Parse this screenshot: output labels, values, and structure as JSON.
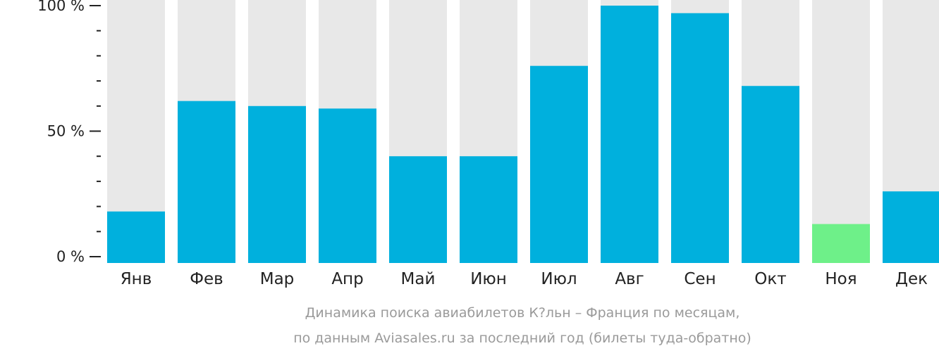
{
  "chart_data": {
    "type": "bar",
    "categories": [
      "Янв",
      "Фев",
      "Мар",
      "Апр",
      "Май",
      "Июн",
      "Июл",
      "Авг",
      "Сен",
      "Окт",
      "Ноя",
      "Дек"
    ],
    "values": [
      18,
      62,
      60,
      59,
      40,
      40,
      76,
      100,
      97,
      68,
      13,
      26
    ],
    "ylim": [
      0,
      100
    ],
    "yticks": [
      {
        "value": 100,
        "label": "100 %"
      },
      {
        "value": 50,
        "label": "50 %"
      },
      {
        "value": 0,
        "label": "0 %"
      }
    ],
    "minor_tick_step": 10,
    "highlight_index": 10,
    "colors": {
      "bar": "#00b0dd",
      "highlight": "#6ef089",
      "background_bar": "#e8e8e8",
      "axis": "#222222"
    },
    "caption_line1": "Динамика поиска авиабилетов К?льн – Франция по месяцам,",
    "caption_line2": "по данным Aviasales.ru за последний год (билеты туда-обратно)"
  }
}
